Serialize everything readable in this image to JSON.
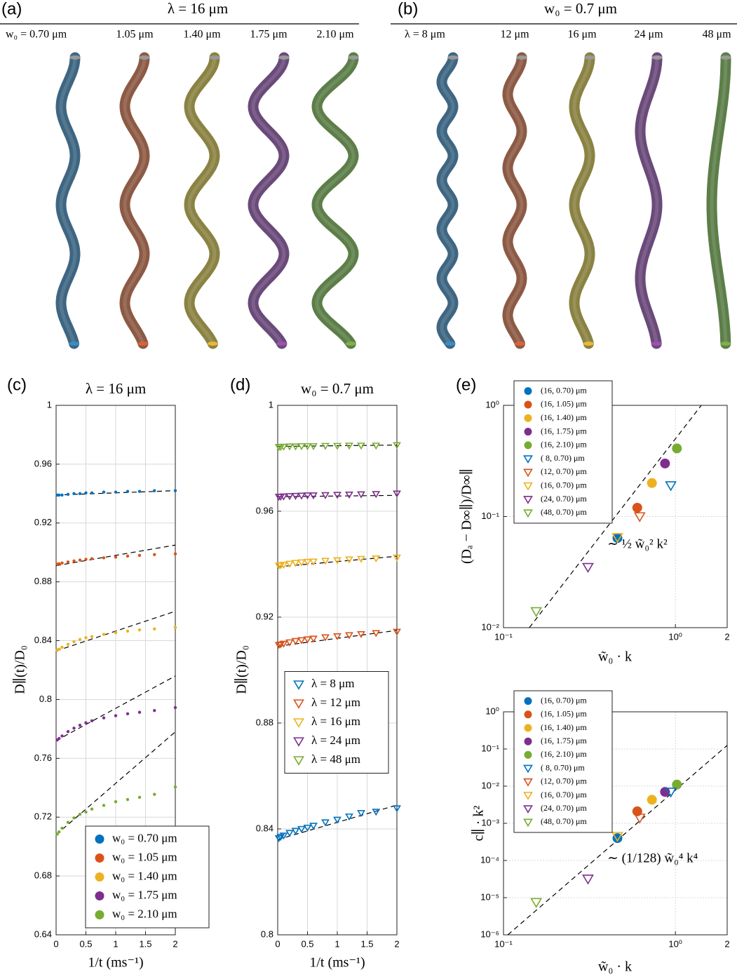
{
  "panel_a": {
    "label": "(a)",
    "title": "λ = 16 μm",
    "tube_labels": [
      "w₀ = 0.70 μm",
      "1.05 μm",
      "1.40 μm",
      "1.75 μm",
      "2.10 μm"
    ]
  },
  "panel_b": {
    "label": "(b)",
    "title": "w₀ = 0.7 μm",
    "tube_labels": [
      "λ = 8 μm",
      "12 μm",
      "16 μm",
      "24 μm",
      "48 μm"
    ]
  },
  "chart_data": [
    {
      "type": "scatter",
      "panel_label": "(c)",
      "title": "λ = 16 μm",
      "x_label": "1/t (ms⁻¹)",
      "y_label": "D∥(t)/D₀",
      "xlim": [
        0,
        2
      ],
      "ylim": [
        0.64,
        1
      ],
      "xticks": [
        0,
        0.5,
        1,
        1.5,
        2
      ],
      "yticks": [
        0.64,
        0.68,
        0.72,
        0.76,
        0.8,
        0.84,
        0.88,
        0.92,
        0.96,
        1
      ],
      "grid": true,
      "legend": "lower right",
      "x": [
        0.02,
        0.05,
        0.1,
        0.2,
        0.3,
        0.4,
        0.5,
        0.6,
        0.8,
        1.0,
        1.2,
        1.4,
        1.65,
        2.0
      ],
      "series": [
        {
          "name": "w₀ = 0.70 μm",
          "color": "#0072BD",
          "marker": "dot",
          "values": [
            0.939,
            0.939,
            0.939,
            0.9395,
            0.94,
            0.94,
            0.9405,
            0.9405,
            0.941,
            0.941,
            0.9415,
            0.9415,
            0.942,
            0.942
          ]
        },
        {
          "name": "w₀ = 1.05 μm",
          "color": "#D95319",
          "marker": "dot",
          "values": [
            0.892,
            0.8923,
            0.8928,
            0.8935,
            0.8942,
            0.8948,
            0.8953,
            0.8957,
            0.8963,
            0.8968,
            0.8975,
            0.898,
            0.8985,
            0.899
          ]
        },
        {
          "name": "w₀ = 1.40 μm",
          "color": "#EDB120",
          "marker": "dot",
          "values": [
            0.8335,
            0.8342,
            0.8355,
            0.8375,
            0.8393,
            0.8408,
            0.842,
            0.8428,
            0.8443,
            0.8455,
            0.8465,
            0.8473,
            0.848,
            0.849
          ]
        },
        {
          "name": "w₀ = 1.75 μm",
          "color": "#7E2F8E",
          "marker": "dot",
          "values": [
            0.7725,
            0.7735,
            0.7752,
            0.7782,
            0.7805,
            0.7825,
            0.7842,
            0.7855,
            0.7875,
            0.789,
            0.7903,
            0.7913,
            0.7925,
            0.7945
          ]
        },
        {
          "name": "w₀ = 2.10 μm",
          "color": "#77AC30",
          "marker": "dot",
          "values": [
            0.7085,
            0.71,
            0.7125,
            0.7165,
            0.7195,
            0.722,
            0.7235,
            0.7255,
            0.728,
            0.7305,
            0.732,
            0.7335,
            0.7355,
            0.7405
          ]
        }
      ],
      "fits": [
        {
          "color": "#000000",
          "x": [
            0,
            2
          ],
          "values": [
            0.939,
            0.942
          ]
        },
        {
          "color": "#000000",
          "x": [
            0,
            2
          ],
          "values": [
            0.891,
            0.905
          ]
        },
        {
          "color": "#000000",
          "x": [
            0,
            2
          ],
          "values": [
            0.833,
            0.86
          ]
        },
        {
          "color": "#000000",
          "x": [
            0,
            2
          ],
          "values": [
            0.772,
            0.816
          ]
        },
        {
          "color": "#000000",
          "x": [
            0,
            2
          ],
          "values": [
            0.708,
            0.778
          ]
        }
      ]
    },
    {
      "type": "scatter",
      "panel_label": "(d)",
      "title": "w₀ = 0.7 μm",
      "x_label": "1/t (ms⁻¹)",
      "y_label": "D∥(t)/D₀",
      "xlim": [
        0,
        2
      ],
      "ylim": [
        0.8,
        1
      ],
      "xticks": [
        0,
        0.5,
        1,
        1.5,
        2
      ],
      "yticks": [
        0.8,
        0.84,
        0.88,
        0.92,
        0.96,
        1
      ],
      "grid": true,
      "legend": "center left",
      "x": [
        0.02,
        0.05,
        0.1,
        0.2,
        0.3,
        0.4,
        0.5,
        0.6,
        0.8,
        1.0,
        1.2,
        1.4,
        1.65,
        2.0
      ],
      "series": [
        {
          "name": "λ = 8 μm",
          "color": "#0072BD",
          "marker": "triangle",
          "values": [
            0.8365,
            0.837,
            0.8375,
            0.8385,
            0.8393,
            0.84,
            0.8405,
            0.8412,
            0.8425,
            0.8435,
            0.8447,
            0.846,
            0.8465,
            0.8478
          ]
        },
        {
          "name": "λ = 12 μm",
          "color": "#D95319",
          "marker": "triangle",
          "values": [
            0.9095,
            0.9097,
            0.91,
            0.9105,
            0.911,
            0.9113,
            0.9116,
            0.9119,
            0.9124,
            0.9128,
            0.9132,
            0.9136,
            0.914,
            0.9145
          ]
        },
        {
          "name": "λ = 16 μm",
          "color": "#EDB120",
          "marker": "triangle",
          "values": [
            0.9395,
            0.9396,
            0.9398,
            0.9402,
            0.9405,
            0.9407,
            0.9409,
            0.941,
            0.9413,
            0.9415,
            0.9418,
            0.942,
            0.9422,
            0.9425
          ]
        },
        {
          "name": "λ = 24 μm",
          "color": "#7E2F8E",
          "marker": "triangle",
          "values": [
            0.9655,
            0.9655,
            0.9656,
            0.9657,
            0.9658,
            0.9659,
            0.966,
            0.966,
            0.9661,
            0.9662,
            0.9663,
            0.9664,
            0.9665,
            0.9667
          ]
        },
        {
          "name": "λ = 48 μm",
          "color": "#77AC30",
          "marker": "triangle",
          "values": [
            0.9843,
            0.9843,
            0.9844,
            0.9845,
            0.9845,
            0.9846,
            0.9846,
            0.9846,
            0.9847,
            0.9847,
            0.9848,
            0.9848,
            0.9848,
            0.985
          ]
        }
      ],
      "fits": [
        {
          "color": "#000000",
          "x": [
            0,
            2
          ],
          "values": [
            0.836,
            0.849
          ]
        },
        {
          "color": "#000000",
          "x": [
            0,
            2
          ],
          "values": [
            0.909,
            0.915
          ]
        },
        {
          "color": "#000000",
          "x": [
            0,
            2
          ],
          "values": [
            0.939,
            0.943
          ]
        },
        {
          "color": "#000000",
          "x": [
            0,
            2
          ],
          "values": [
            0.9655,
            0.966
          ]
        },
        {
          "color": "#000000",
          "x": [
            0,
            2
          ],
          "values": [
            0.9845,
            0.985
          ]
        }
      ]
    },
    {
      "type": "scatter",
      "panel_label": "(e)",
      "x_label": "w̃₀ · k",
      "y_label": "(Dₐ − D∞∥)/D∞∥",
      "log_x": true,
      "log_y": true,
      "xlim": [
        0.1,
        2
      ],
      "ylim": [
        0.01,
        1
      ],
      "xticks": [
        {
          "value": 0.1,
          "label": "10⁻¹"
        },
        {
          "value": 1,
          "label": "10⁰"
        },
        2
      ],
      "yticks": [
        {
          "value": 0.01,
          "label": "10⁻²"
        },
        {
          "value": 0.1,
          "label": "10⁻¹"
        },
        {
          "value": 1,
          "label": "10⁰"
        }
      ],
      "grid": true,
      "legend": "upper left",
      "annotation": "∼ ½ w̃₀² k²",
      "series": [
        {
          "name": "(16, 0.70) μm",
          "color": "#0072BD",
          "marker": "circle",
          "x": [
            0.46
          ],
          "values": [
            0.064
          ]
        },
        {
          "name": "(16, 1.05) μm",
          "color": "#D95319",
          "marker": "circle",
          "x": [
            0.6
          ],
          "values": [
            0.12
          ]
        },
        {
          "name": "(16, 1.40) μm",
          "color": "#EDB120",
          "marker": "circle",
          "x": [
            0.73
          ],
          "values": [
            0.2
          ]
        },
        {
          "name": "(16, 1.75) μm",
          "color": "#7E2F8E",
          "marker": "circle",
          "x": [
            0.87
          ],
          "values": [
            0.3
          ]
        },
        {
          "name": "(16, 2.10) μm",
          "color": "#77AC30",
          "marker": "circle",
          "x": [
            1.02
          ],
          "values": [
            0.41
          ]
        },
        {
          "name": "( 8, 0.70) μm",
          "color": "#0072BD",
          "marker": "triangle",
          "x": [
            0.94
          ],
          "values": [
            0.19
          ]
        },
        {
          "name": "(12, 0.70) μm",
          "color": "#D95319",
          "marker": "triangle",
          "x": [
            0.62
          ],
          "values": [
            0.1
          ]
        },
        {
          "name": "(16, 0.70) μm",
          "color": "#EDB120",
          "marker": "triangle",
          "x": [
            0.46
          ],
          "values": [
            0.065
          ]
        },
        {
          "name": "(24, 0.70) μm",
          "color": "#7E2F8E",
          "marker": "triangle",
          "x": [
            0.31
          ],
          "values": [
            0.035
          ]
        },
        {
          "name": "(48, 0.70) μm",
          "color": "#77AC30",
          "marker": "triangle",
          "x": [
            0.155
          ],
          "values": [
            0.014
          ]
        }
      ],
      "fits": [
        {
          "color": "#000000",
          "x": [
            0.1414,
            1.414
          ],
          "values": [
            0.01,
            1
          ]
        }
      ]
    },
    {
      "type": "scatter",
      "x_label": "w̃₀ · k",
      "y_label": "c∥ · k²",
      "log_x": true,
      "log_y": true,
      "xlim": [
        0.1,
        2
      ],
      "ylim": [
        1e-06,
        1
      ],
      "xticks": [
        {
          "value": 0.1,
          "label": "10⁻¹"
        },
        {
          "value": 1,
          "label": "10⁰"
        },
        2
      ],
      "yticks": [
        {
          "value": 1e-06,
          "label": "10⁻⁶"
        },
        {
          "value": 1e-05,
          "label": "10⁻⁵"
        },
        {
          "value": 0.0001,
          "label": "10⁻⁴"
        },
        {
          "value": 0.001,
          "label": "10⁻³"
        },
        {
          "value": 0.01,
          "label": "10⁻²"
        },
        {
          "value": 0.1,
          "label": "10⁻¹"
        },
        {
          "value": 1,
          "label": "10⁰"
        }
      ],
      "grid": true,
      "legend": "upper left",
      "annotation": "∼ (1/128) w̃₀⁴ k⁴",
      "series": [
        {
          "name": "(16, 0.70) μm",
          "color": "#0072BD",
          "marker": "circle",
          "x": [
            0.46
          ],
          "values": [
            0.0004
          ]
        },
        {
          "name": "(16, 1.05) μm",
          "color": "#D95319",
          "marker": "circle",
          "x": [
            0.6
          ],
          "values": [
            0.0021
          ]
        },
        {
          "name": "(16, 1.40) μm",
          "color": "#EDB120",
          "marker": "circle",
          "x": [
            0.73
          ],
          "values": [
            0.0043
          ]
        },
        {
          "name": "(16, 1.75) μm",
          "color": "#7E2F8E",
          "marker": "circle",
          "x": [
            0.87
          ],
          "values": [
            0.007
          ]
        },
        {
          "name": "(16, 2.10) μm",
          "color": "#77AC30",
          "marker": "circle",
          "x": [
            1.02
          ],
          "values": [
            0.011
          ]
        },
        {
          "name": "( 8, 0.70) μm",
          "color": "#0072BD",
          "marker": "triangle",
          "x": [
            0.94
          ],
          "values": [
            0.007
          ]
        },
        {
          "name": "(12, 0.70) μm",
          "color": "#D95319",
          "marker": "triangle",
          "x": [
            0.62
          ],
          "values": [
            0.0014
          ]
        },
        {
          "name": "(16, 0.70) μm",
          "color": "#EDB120",
          "marker": "triangle",
          "x": [
            0.46
          ],
          "values": [
            0.00045
          ]
        },
        {
          "name": "(24, 0.70) μm",
          "color": "#7E2F8E",
          "marker": "triangle",
          "x": [
            0.31
          ],
          "values": [
            3.2e-05
          ]
        },
        {
          "name": "(48, 0.70) μm",
          "color": "#77AC30",
          "marker": "triangle",
          "x": [
            0.155
          ],
          "values": [
            7.5e-06
          ]
        }
      ],
      "fits": [
        {
          "color": "#000000",
          "x": [
            0.106,
            2
          ],
          "values": [
            1e-06,
            0.125
          ]
        }
      ]
    }
  ]
}
